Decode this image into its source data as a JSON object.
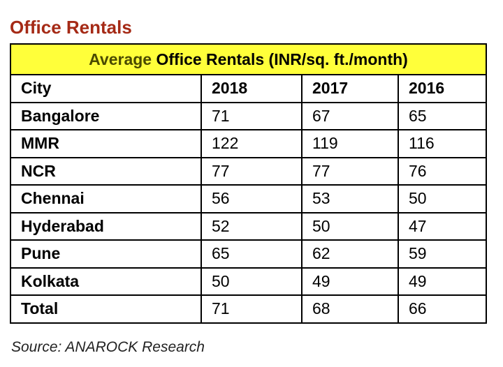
{
  "heading": "Office Rentals",
  "table": {
    "title_prefix": "Average",
    "title_main": "Office Rentals (INR/sq. ft./month)",
    "header": [
      "City",
      "2018",
      "2017",
      "2016"
    ],
    "rows": [
      [
        "Bangalore",
        "71",
        "67",
        "65"
      ],
      [
        "MMR",
        "122",
        "119",
        "116"
      ],
      [
        "NCR",
        "77",
        "77",
        "76"
      ],
      [
        "Chennai",
        "56",
        "53",
        "50"
      ],
      [
        "Hyderabad",
        "52",
        "50",
        "47"
      ],
      [
        "Pune",
        "65",
        "62",
        "59"
      ],
      [
        "Kolkata",
        "50",
        "49",
        "49"
      ],
      [
        "Total",
        "71",
        "68",
        "66"
      ]
    ]
  },
  "source": "Source: ANAROCK Research",
  "colors": {
    "heading": "#a52a16",
    "title_band": "#ffff3a",
    "border": "#000000"
  }
}
